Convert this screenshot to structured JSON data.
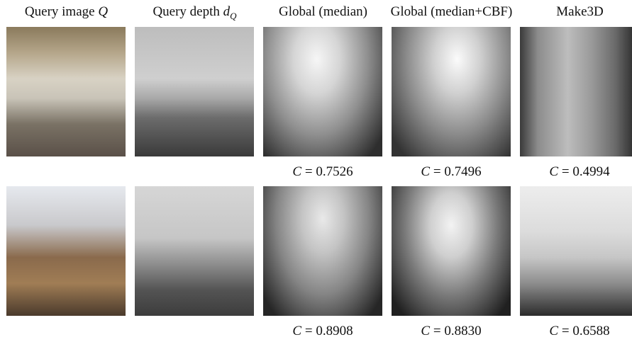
{
  "headers": [
    {
      "text": "Query image",
      "math": "Q"
    },
    {
      "text": "Query depth",
      "math": "d",
      "sub": "Q"
    },
    {
      "text": "Global (median)"
    },
    {
      "text": "Global (median+CBF)"
    },
    {
      "text": "Make3D"
    }
  ],
  "rows": [
    {
      "captions": [
        null,
        null,
        {
          "symbol": "C",
          "rest": "= 0.7526"
        },
        {
          "symbol": "C",
          "rest": "= 0.7496"
        },
        {
          "symbol": "C",
          "rest": "= 0.4994"
        }
      ]
    },
    {
      "captions": [
        null,
        null,
        {
          "symbol": "C",
          "rest": "= 0.8908"
        },
        {
          "symbol": "C",
          "rest": "= 0.8830"
        },
        {
          "symbol": "C",
          "rest": "= 0.6588"
        }
      ]
    }
  ]
}
